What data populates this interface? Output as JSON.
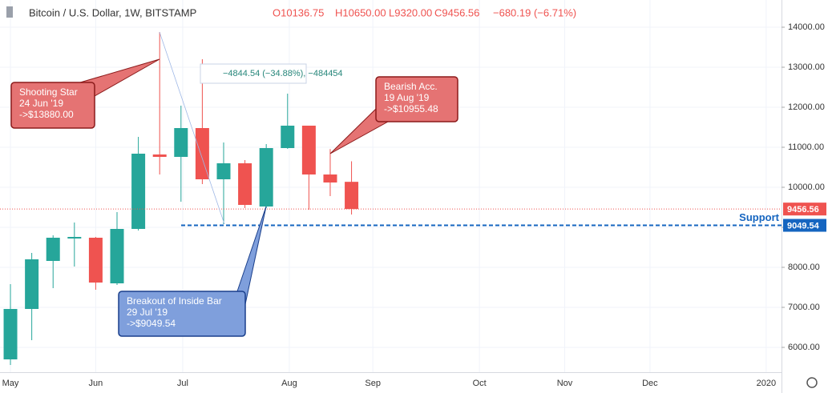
{
  "chart_data": {
    "type": "candlestick",
    "title": "Bitcoin / U.S. Dollar, 1W, BITSTAMP",
    "ohlc_header": {
      "open": "O10136.75",
      "high": "H10650.00",
      "low": "L9320.00",
      "close": "C9456.56",
      "change": "−680.19 (−6.71%)"
    },
    "up_color": "#26a69a",
    "down_color": "#ef5350",
    "x": [
      0,
      1,
      2,
      3,
      4,
      5,
      6,
      7,
      8,
      9,
      10,
      11,
      12,
      13,
      14,
      15,
      16
    ],
    "open": [
      5700,
      6960,
      8160,
      8720,
      8740,
      7600,
      8960,
      10820,
      10760,
      11480,
      10200,
      10600,
      9520,
      10980,
      11540,
      10320,
      10136.75
    ],
    "high": [
      7580,
      8360,
      8800,
      9120,
      8760,
      9380,
      11260,
      13880,
      12040,
      13200,
      11120,
      10680,
      11080,
      12340,
      11540,
      10955.48,
      10650
    ],
    "low": [
      5560,
      6180,
      7480,
      8020,
      7440,
      7560,
      8920,
      10320,
      9640,
      10080,
      9080,
      9480,
      9480,
      10960,
      9440,
      9780,
      9320
    ],
    "close": [
      6960,
      8200,
      8740,
      8760,
      7620,
      8960,
      10840,
      10760,
      11480,
      10200,
      10600,
      9560,
      10980,
      11540,
      10320,
      10120,
      9456.56
    ],
    "xlim": [
      -0.49,
      36.17
    ],
    "xticks": [
      {
        "value": 0,
        "label": "May"
      },
      {
        "value": 4,
        "label": "Jun"
      },
      {
        "value": 8.08,
        "label": "Jul"
      },
      {
        "value": 13.08,
        "label": "Aug"
      },
      {
        "value": 17,
        "label": "Sep"
      },
      {
        "value": 22,
        "label": "Oct"
      },
      {
        "value": 26,
        "label": "Nov"
      },
      {
        "value": 30,
        "label": "Dec"
      },
      {
        "value": 35.45,
        "label": "2020"
      }
    ],
    "ylim": [
      5380,
      14680
    ],
    "yticks": [
      {
        "value": 6000,
        "label": "6000.00"
      },
      {
        "value": 7000,
        "label": "7000.00"
      },
      {
        "value": 8000,
        "label": "8000.00"
      },
      {
        "value": 9000,
        "label": "9000.00"
      },
      {
        "value": 10000,
        "label": "10000.00"
      },
      {
        "value": 11000,
        "label": "11000.00"
      },
      {
        "value": 12000,
        "label": "12000.00"
      },
      {
        "value": 13000,
        "label": "13000.00"
      },
      {
        "value": 14000,
        "label": "14000.00"
      }
    ],
    "grid": true,
    "hlines": [
      {
        "value": 9456.56,
        "label": "9456.56",
        "color": "#ef5350",
        "style": "dotted"
      },
      {
        "value": 9049.54,
        "label": "9049.54",
        "color": "#1565c0",
        "style": "dashed",
        "name": "Support"
      }
    ],
    "measure": "−4844.54 (−34.88%), −484454",
    "annotations": [
      {
        "lines": [
          "Shooting Star",
          "24 Jun '19",
          "->$13880.00"
        ],
        "color": "red"
      },
      {
        "lines": [
          "Bearish Acc.",
          "19 Aug '19",
          "->$10955.48"
        ],
        "color": "red"
      },
      {
        "lines": [
          "Breakout of Inside Bar",
          "29 Jul '19",
          "->$9049.54"
        ],
        "color": "blue"
      }
    ]
  }
}
